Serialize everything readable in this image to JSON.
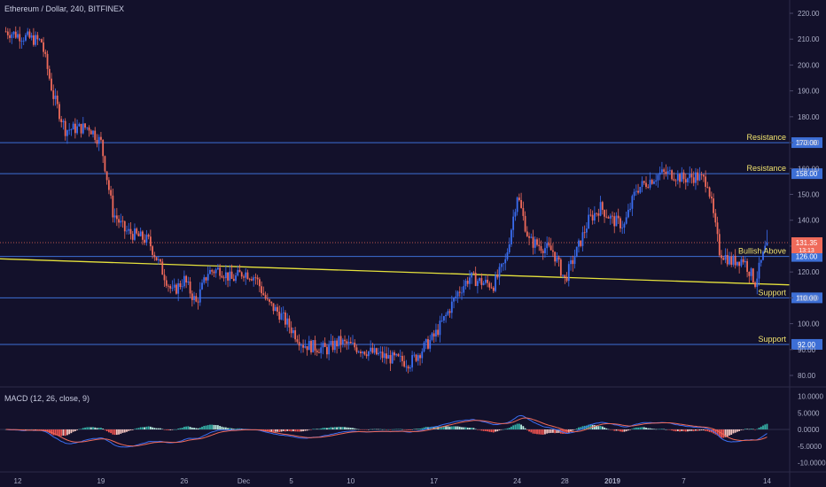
{
  "header": {
    "symbol_title": "Ethereum / Dollar, 240, BITFINEX"
  },
  "macd_panel": {
    "label": "MACD (12, 26, close, 9)",
    "axis_ticks": [
      "10.0000",
      "5.0000",
      "0.0000",
      "-5.0000",
      "-10.0000"
    ],
    "tick_values": [
      10,
      5,
      0,
      -5,
      -10
    ],
    "range": [
      -12,
      12
    ]
  },
  "colors": {
    "background": "#13112b",
    "bull": "#3a6df0",
    "bear": "#ef6a5a",
    "level_line": "#3d6fd6",
    "trendline": "#e6e23c",
    "macd_line": "#3a6df0",
    "signal_line": "#ef6a5a",
    "hist_pos": "#35b0a6",
    "hist_pos_light": "#b9ebe0",
    "hist_neg": "#ef5350",
    "hist_neg_light": "#f7c6c0",
    "axis_text": "#a9acc4",
    "label_text": "#f1e36e"
  },
  "chart_data": {
    "type": "candlestick",
    "title": "Ethereum / Dollar, 240, BITFINEX",
    "x_ticks": [
      "12",
      "19",
      "26",
      "Dec",
      "5",
      "10",
      "17",
      "24",
      "28",
      "2019",
      "7",
      "14"
    ],
    "y_ticks": [
      "220.00",
      "210.00",
      "200.00",
      "190.00",
      "180.00",
      "170.00",
      "160.00",
      "150.00",
      "140.00",
      "130.00",
      "120.00",
      "110.00",
      "100.00",
      "90.00",
      "80.00"
    ],
    "y_tick_values": [
      220,
      210,
      200,
      190,
      180,
      170,
      160,
      150,
      140,
      130,
      120,
      110,
      100,
      90,
      80
    ],
    "ylim": [
      75,
      225
    ],
    "grid": false,
    "price_path": [
      {
        "date": "Nov 11",
        "price": 213
      },
      {
        "date": "Nov 14",
        "price": 209
      },
      {
        "date": "Nov 15",
        "price": 188
      },
      {
        "date": "Nov 16",
        "price": 175
      },
      {
        "date": "Nov 18",
        "price": 176
      },
      {
        "date": "Nov 19",
        "price": 170
      },
      {
        "date": "Nov 20",
        "price": 143
      },
      {
        "date": "Nov 21",
        "price": 136
      },
      {
        "date": "Nov 23",
        "price": 132
      },
      {
        "date": "Nov 24",
        "price": 122
      },
      {
        "date": "Nov 25",
        "price": 112
      },
      {
        "date": "Nov 26",
        "price": 117
      },
      {
        "date": "Nov 27",
        "price": 108
      },
      {
        "date": "Nov 28",
        "price": 120
      },
      {
        "date": "Nov 29",
        "price": 121
      },
      {
        "date": "Nov 30",
        "price": 117
      },
      {
        "date": "Dec 1",
        "price": 120
      },
      {
        "date": "Dec 2",
        "price": 118
      },
      {
        "date": "Dec 3",
        "price": 108
      },
      {
        "date": "Dec 4",
        "price": 104
      },
      {
        "date": "Dec 6",
        "price": 92
      },
      {
        "date": "Dec 7",
        "price": 91
      },
      {
        "date": "Dec 8",
        "price": 90
      },
      {
        "date": "Dec 9",
        "price": 93
      },
      {
        "date": "Dec 11",
        "price": 90
      },
      {
        "date": "Dec 13",
        "price": 87
      },
      {
        "date": "Dec 15",
        "price": 85
      },
      {
        "date": "Dec 17",
        "price": 95
      },
      {
        "date": "Dec 18",
        "price": 103
      },
      {
        "date": "Dec 19",
        "price": 112
      },
      {
        "date": "Dec 20",
        "price": 118
      },
      {
        "date": "Dec 21",
        "price": 116
      },
      {
        "date": "Dec 22",
        "price": 115
      },
      {
        "date": "Dec 23",
        "price": 124
      },
      {
        "date": "Dec 24",
        "price": 150
      },
      {
        "date": "Dec 25",
        "price": 132
      },
      {
        "date": "Dec 26",
        "price": 130
      },
      {
        "date": "Dec 27",
        "price": 128
      },
      {
        "date": "Dec 28",
        "price": 117
      },
      {
        "date": "Dec 29",
        "price": 128
      },
      {
        "date": "Dec 30",
        "price": 140
      },
      {
        "date": "Dec 31",
        "price": 145
      },
      {
        "date": "Jan 1",
        "price": 140
      },
      {
        "date": "Jan 2",
        "price": 138
      },
      {
        "date": "Jan 3",
        "price": 152
      },
      {
        "date": "Jan 4",
        "price": 155
      },
      {
        "date": "Jan 5",
        "price": 158
      },
      {
        "date": "Jan 6",
        "price": 158
      },
      {
        "date": "Jan 7",
        "price": 156
      },
      {
        "date": "Jan 8",
        "price": 157
      },
      {
        "date": "Jan 9",
        "price": 155
      },
      {
        "date": "Jan 10",
        "price": 128
      },
      {
        "date": "Jan 11",
        "price": 124
      },
      {
        "date": "Jan 12",
        "price": 125
      },
      {
        "date": "Jan 13",
        "price": 116
      },
      {
        "date": "Jan 14",
        "price": 131.35
      }
    ],
    "last_price": "131.35",
    "countdown": "13:13",
    "levels": [
      {
        "value": 170,
        "tag": "170.00",
        "text": "Resistance"
      },
      {
        "value": 158,
        "tag": "158.00",
        "text": "Resistance"
      },
      {
        "value": 126,
        "tag": "126.00",
        "text": "Bullish Above"
      },
      {
        "value": 110,
        "tag": "110.00",
        "text": "Support"
      },
      {
        "value": 92,
        "tag": "92.00",
        "text": "Support"
      }
    ],
    "trendline": [
      {
        "date": "Nov 11",
        "price": 125
      },
      {
        "date": "Jan 16",
        "price": 115
      }
    ]
  }
}
